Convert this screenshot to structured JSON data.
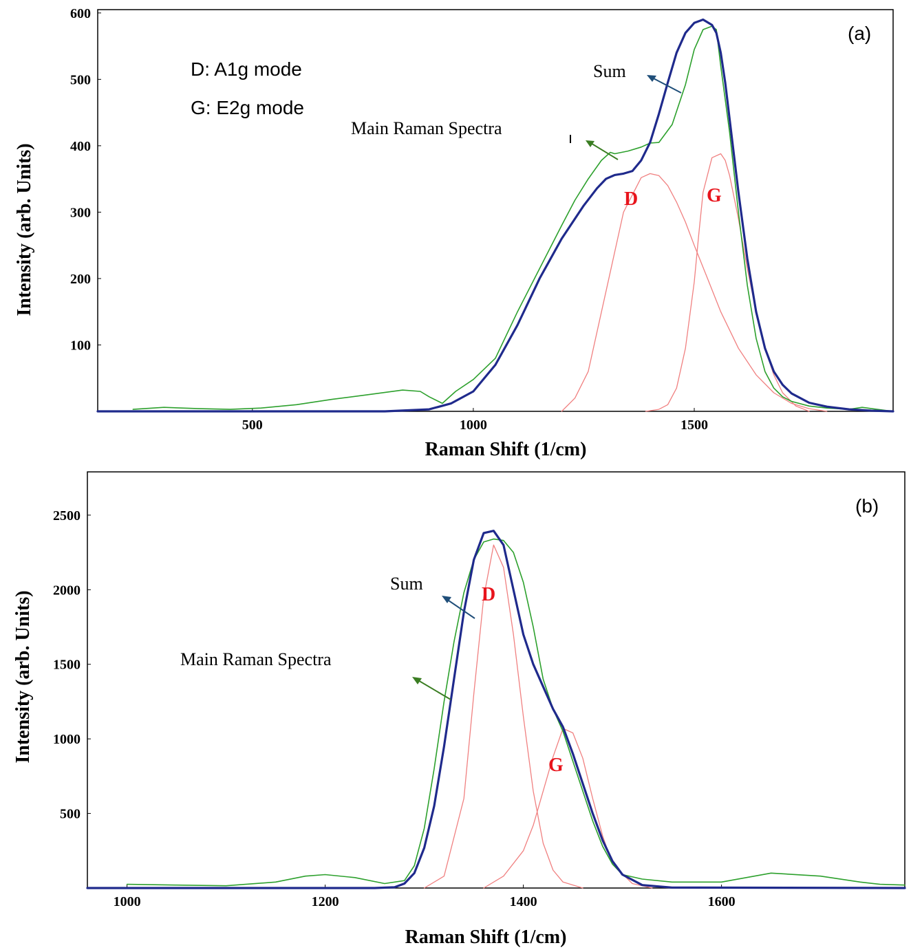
{
  "chart_data": [
    {
      "type": "line",
      "panel_label": "(a)",
      "xlabel": "Raman Shift (1/cm)",
      "ylabel": "Intensity (arb. Units)",
      "xlim": [
        150,
        1950
      ],
      "ylim": [
        0,
        605
      ],
      "x_ticks": [
        500,
        1000,
        1500
      ],
      "y_ticks": [
        100,
        200,
        300,
        400,
        500,
        600
      ],
      "legend_lines": [
        "D: A1g mode",
        "G: E2g mode"
      ],
      "annotations": {
        "sum": "Sum",
        "main": "Main Raman Spectra",
        "d": "D",
        "g": "G"
      },
      "colors": {
        "measured": "#2ca02c",
        "sum": "#1f2a8c",
        "components": "#f08080",
        "peak_labels": "#e8141c"
      },
      "series": [
        {
          "name": "Main Raman Spectra",
          "x": [
            230,
            300,
            380,
            450,
            520,
            600,
            680,
            760,
            840,
            880,
            900,
            930,
            960,
            1000,
            1050,
            1100,
            1150,
            1200,
            1230,
            1260,
            1290,
            1310,
            1320,
            1350,
            1380,
            1400,
            1420,
            1450,
            1480,
            1500,
            1520,
            1540,
            1550,
            1560,
            1580,
            1600,
            1620,
            1640,
            1660,
            1680,
            1700,
            1720,
            1760,
            1800,
            1850,
            1880,
            1950
          ],
          "y": [
            3,
            6,
            4,
            3,
            5,
            10,
            18,
            25,
            32,
            30,
            22,
            12,
            30,
            48,
            80,
            150,
            215,
            280,
            318,
            350,
            378,
            390,
            388,
            392,
            398,
            404,
            405,
            432,
            492,
            545,
            575,
            580,
            575,
            520,
            420,
            300,
            190,
            110,
            60,
            35,
            22,
            15,
            8,
            5,
            3,
            6,
            0
          ]
        },
        {
          "name": "Sum",
          "x": [
            150,
            600,
            800,
            900,
            950,
            1000,
            1050,
            1100,
            1150,
            1200,
            1250,
            1280,
            1300,
            1320,
            1340,
            1360,
            1380,
            1400,
            1420,
            1440,
            1460,
            1480,
            1500,
            1520,
            1540,
            1550,
            1560,
            1570,
            1580,
            1600,
            1620,
            1640,
            1660,
            1680,
            1700,
            1720,
            1760,
            1800,
            1850,
            1900,
            1950
          ],
          "y": [
            0,
            0,
            0,
            3,
            12,
            30,
            70,
            130,
            200,
            260,
            310,
            336,
            350,
            356,
            358,
            362,
            378,
            405,
            448,
            495,
            540,
            570,
            585,
            590,
            582,
            570,
            540,
            495,
            440,
            330,
            230,
            150,
            95,
            60,
            40,
            27,
            13,
            7,
            3,
            1,
            0
          ]
        },
        {
          "name": "D",
          "x": [
            1200,
            1230,
            1260,
            1300,
            1340,
            1380,
            1400,
            1420,
            1440,
            1460,
            1480,
            1500,
            1530,
            1560,
            1600,
            1640,
            1680,
            1720,
            1760,
            1800
          ],
          "y": [
            0,
            20,
            60,
            180,
            300,
            352,
            358,
            355,
            340,
            315,
            285,
            250,
            200,
            150,
            95,
            55,
            28,
            12,
            4,
            0
          ]
        },
        {
          "name": "G",
          "x": [
            1390,
            1420,
            1440,
            1460,
            1480,
            1500,
            1510,
            1520,
            1540,
            1560,
            1570,
            1580,
            1600,
            1620,
            1640,
            1660,
            1680,
            1700,
            1730,
            1760
          ],
          "y": [
            0,
            3,
            10,
            35,
            95,
            195,
            265,
            330,
            382,
            388,
            378,
            355,
            290,
            215,
            150,
            95,
            55,
            28,
            8,
            0
          ]
        }
      ]
    },
    {
      "type": "line",
      "panel_label": "(b)",
      "xlabel": "Raman Shift (1/cm)",
      "ylabel": "Intensity (arb. Units)",
      "xlim": [
        960,
        1785
      ],
      "ylim": [
        0,
        2790
      ],
      "x_ticks": [
        1000,
        1200,
        1400,
        1600
      ],
      "y_ticks": [
        500,
        1000,
        1500,
        2000,
        2500
      ],
      "annotations": {
        "sum": "Sum",
        "main": "Main Raman Spectra",
        "d": "D",
        "g": "G"
      },
      "colors": {
        "measured": "#2ca02c",
        "sum": "#1f2a8c",
        "components": "#f08080",
        "peak_labels": "#e8141c"
      },
      "series": [
        {
          "name": "Main Raman Spectra",
          "x": [
            1000,
            1050,
            1100,
            1150,
            1180,
            1200,
            1230,
            1260,
            1280,
            1290,
            1300,
            1310,
            1320,
            1330,
            1340,
            1350,
            1360,
            1370,
            1380,
            1390,
            1400,
            1410,
            1420,
            1430,
            1440,
            1450,
            1460,
            1470,
            1480,
            1490,
            1500,
            1520,
            1550,
            1600,
            1650,
            1700,
            1740,
            1760,
            1785
          ],
          "y": [
            25,
            20,
            15,
            40,
            80,
            90,
            70,
            30,
            50,
            150,
            400,
            800,
            1250,
            1650,
            1980,
            2200,
            2320,
            2340,
            2330,
            2250,
            2050,
            1750,
            1400,
            1200,
            1050,
            850,
            650,
            450,
            280,
            160,
            90,
            60,
            40,
            40,
            100,
            80,
            40,
            25,
            20
          ]
        },
        {
          "name": "Sum",
          "x": [
            960,
            1250,
            1270,
            1280,
            1290,
            1300,
            1310,
            1320,
            1330,
            1340,
            1350,
            1360,
            1370,
            1380,
            1390,
            1400,
            1410,
            1420,
            1430,
            1440,
            1450,
            1460,
            1470,
            1480,
            1490,
            1500,
            1520,
            1550,
            1785
          ],
          "y": [
            0,
            0,
            5,
            30,
            100,
            270,
            550,
            950,
            1400,
            1850,
            2200,
            2380,
            2395,
            2300,
            2000,
            1700,
            1500,
            1350,
            1200,
            1080,
            900,
            700,
            500,
            320,
            180,
            90,
            20,
            3,
            0
          ]
        },
        {
          "name": "D",
          "x": [
            1300,
            1320,
            1340,
            1350,
            1360,
            1370,
            1380,
            1390,
            1400,
            1410,
            1420,
            1430,
            1440,
            1460
          ],
          "y": [
            0,
            80,
            600,
            1300,
            1950,
            2300,
            2150,
            1700,
            1150,
            650,
            300,
            120,
            40,
            0
          ]
        },
        {
          "name": "G",
          "x": [
            1360,
            1380,
            1400,
            1410,
            1420,
            1430,
            1440,
            1450,
            1460,
            1470,
            1480,
            1490,
            1510,
            1530
          ],
          "y": [
            0,
            80,
            250,
            420,
            650,
            880,
            1070,
            1040,
            870,
            600,
            350,
            160,
            30,
            0
          ]
        }
      ]
    }
  ]
}
